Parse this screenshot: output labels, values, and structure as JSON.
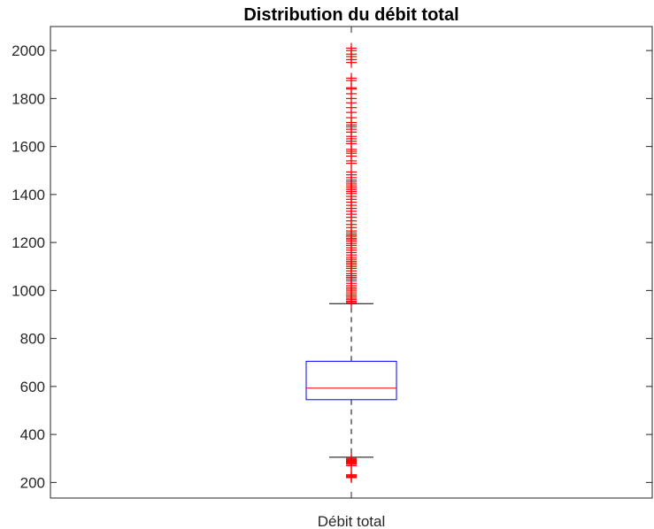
{
  "chart_data": {
    "type": "boxplot",
    "title": "Distribution du débit total",
    "xlabel": "",
    "ylabel": "",
    "categories": [
      "Débit total"
    ],
    "ylim": [
      135,
      2100
    ],
    "yticks": [
      200,
      400,
      600,
      800,
      1000,
      1200,
      1400,
      1600,
      1800,
      2000
    ],
    "grid": false,
    "box": {
      "q1": 545,
      "median": 593,
      "q3": 705,
      "whisker_low": 305,
      "whisker_high": 945
    },
    "outliers_low": [
      220,
      222,
      224,
      228,
      232,
      270,
      276,
      280,
      284,
      288,
      292,
      296,
      300
    ],
    "outliers_high": [
      950,
      955,
      962,
      968,
      975,
      982,
      990,
      998,
      1005,
      1012,
      1020,
      1030,
      1040,
      1048,
      1055,
      1062,
      1070,
      1082,
      1092,
      1100,
      1108,
      1115,
      1122,
      1130,
      1138,
      1148,
      1158,
      1168,
      1178,
      1188,
      1196,
      1205,
      1212,
      1218,
      1226,
      1232,
      1240,
      1248,
      1262,
      1275,
      1290,
      1305,
      1318,
      1330,
      1342,
      1355,
      1368,
      1380,
      1392,
      1404,
      1412,
      1420,
      1428,
      1436,
      1444,
      1452,
      1460,
      1470,
      1482,
      1494,
      1530,
      1540,
      1560,
      1572,
      1580,
      1588,
      1612,
      1622,
      1632,
      1642,
      1660,
      1672,
      1682,
      1690,
      1700,
      1720,
      1742,
      1762,
      1782,
      1800,
      1820,
      1840,
      1845,
      1875,
      1885,
      1950,
      1962,
      1975,
      1985,
      2000,
      2010
    ],
    "colors": {
      "box": "#0000ff",
      "median": "#ff0000",
      "outliers": "#ff0000",
      "whisker": "#000000",
      "axis": "#262626"
    }
  }
}
